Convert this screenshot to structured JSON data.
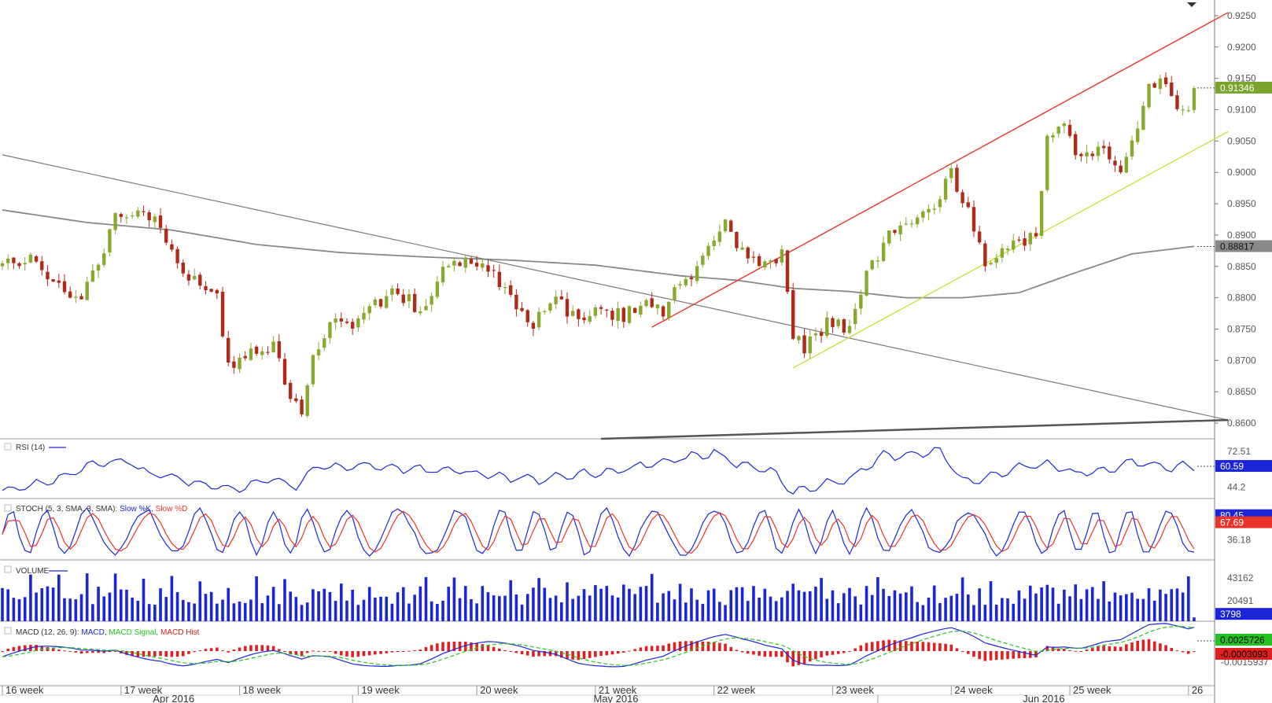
{
  "colors": {
    "bull": "#8aa82e",
    "bear": "#b02a1a",
    "ma": "#888888",
    "channel_upper": "#e8342a",
    "channel_lower": "#c9e13a",
    "trend": "#7a7a7a",
    "support": "#555555",
    "rsi": "#1b26d8",
    "stoch_k": "#1b26d8",
    "stoch_d": "#e8342a",
    "volume": "#1b26d8",
    "macd": "#1b26d8",
    "macd_signal": "#1ec81e",
    "macd_hist": "#e02020",
    "price_badge": "#7aa52c",
    "ma_badge": "#888888"
  },
  "chart_data": [
    {
      "type": "candlestick",
      "symbol_panel": "price",
      "ylim": [
        0.8575,
        0.9275
      ],
      "y_ticks": [
        "0.9250",
        "0.9200",
        "0.9150",
        "0.9100",
        "0.9050",
        "0.9000",
        "0.8950",
        "0.8900",
        "0.8850",
        "0.8800",
        "0.8750",
        "0.8700",
        "0.8650",
        "0.8600"
      ],
      "current_price": "0.91346",
      "ma_value": "0.88817",
      "ma_path": [
        [
          0,
          0.894
        ],
        [
          15,
          0.892
        ],
        [
          30,
          0.8908
        ],
        [
          45,
          0.8885
        ],
        [
          60,
          0.8872
        ],
        [
          75,
          0.8865
        ],
        [
          90,
          0.886
        ],
        [
          105,
          0.8852
        ],
        [
          120,
          0.8835
        ],
        [
          130,
          0.8828
        ],
        [
          140,
          0.8815
        ],
        [
          150,
          0.881
        ],
        [
          160,
          0.88
        ],
        [
          170,
          0.88
        ],
        [
          180,
          0.8808
        ],
        [
          190,
          0.884
        ],
        [
          200,
          0.887
        ],
        [
          211,
          0.8882
        ]
      ],
      "trendline_down": [
        [
          0,
          0.9028
        ],
        [
          217,
          0.8605
        ]
      ],
      "trendline_support": [
        [
          106,
          0.8575
        ],
        [
          217,
          0.8605
        ]
      ],
      "channel_upper": [
        [
          115,
          0.8753
        ],
        [
          217,
          0.9255
        ]
      ],
      "channel_lower": [
        [
          140,
          0.8688
        ],
        [
          217,
          0.9065
        ]
      ],
      "anchors": [
        [
          0,
          0.885
        ],
        [
          6,
          0.886
        ],
        [
          10,
          0.882
        ],
        [
          14,
          0.88
        ],
        [
          18,
          0.887
        ],
        [
          20,
          0.894
        ],
        [
          24,
          0.893
        ],
        [
          28,
          0.892
        ],
        [
          32,
          0.883
        ],
        [
          36,
          0.882
        ],
        [
          38,
          0.88
        ],
        [
          40,
          0.869
        ],
        [
          44,
          0.871
        ],
        [
          48,
          0.872
        ],
        [
          51,
          0.864
        ],
        [
          53,
          0.861
        ],
        [
          55,
          0.87
        ],
        [
          58,
          0.876
        ],
        [
          62,
          0.875
        ],
        [
          66,
          0.879
        ],
        [
          70,
          0.881
        ],
        [
          74,
          0.878
        ],
        [
          78,
          0.884
        ],
        [
          82,
          0.886
        ],
        [
          86,
          0.885
        ],
        [
          90,
          0.88
        ],
        [
          94,
          0.876
        ],
        [
          98,
          0.88
        ],
        [
          102,
          0.876
        ],
        [
          106,
          0.878
        ],
        [
          110,
          0.877
        ],
        [
          114,
          0.88
        ],
        [
          117,
          0.878
        ],
        [
          120,
          0.882
        ],
        [
          124,
          0.886
        ],
        [
          128,
          0.892
        ],
        [
          131,
          0.887
        ],
        [
          135,
          0.885
        ],
        [
          138,
          0.887
        ],
        [
          140,
          0.874
        ],
        [
          142,
          0.872
        ],
        [
          146,
          0.876
        ],
        [
          150,
          0.875
        ],
        [
          153,
          0.884
        ],
        [
          157,
          0.89
        ],
        [
          161,
          0.891
        ],
        [
          165,
          0.895
        ],
        [
          168,
          0.9
        ],
        [
          171,
          0.894
        ],
        [
          174,
          0.886
        ],
        [
          177,
          0.887
        ],
        [
          180,
          0.889
        ],
        [
          183,
          0.89
        ],
        [
          185,
          0.906
        ],
        [
          188,
          0.907
        ],
        [
          191,
          0.902
        ],
        [
          195,
          0.904
        ],
        [
          198,
          0.9
        ],
        [
          200,
          0.905
        ],
        [
          203,
          0.914
        ],
        [
          206,
          0.914
        ],
        [
          208,
          0.911
        ],
        [
          210,
          0.909
        ],
        [
          211,
          0.9135
        ]
      ],
      "x_labels": [
        {
          "t": "16 week",
          "i": 0
        },
        {
          "t": "17 week",
          "i": 21
        },
        {
          "t": "18 week",
          "i": 42
        },
        {
          "t": "19 week",
          "i": 63
        },
        {
          "t": "20 week",
          "i": 84
        },
        {
          "t": "21 week",
          "i": 105
        },
        {
          "t": "22 week",
          "i": 126
        },
        {
          "t": "23 week",
          "i": 147
        },
        {
          "t": "24 week",
          "i": 168
        },
        {
          "t": "25 week",
          "i": 189
        },
        {
          "t": "26",
          "i": 210
        }
      ],
      "month_labels": [
        {
          "t": "Apr 2016",
          "i": 30
        },
        {
          "t": "May 2016",
          "i": 108
        },
        {
          "t": "Jun 2016",
          "i": 184
        }
      ],
      "month_separators": [
        62,
        155
      ]
    },
    {
      "type": "line",
      "title": "RSI (14)",
      "ylim": [
        35,
        80
      ],
      "y_ticks": [
        "72.51",
        "44.2"
      ],
      "current": "60.59",
      "anchors": [
        [
          0,
          42
        ],
        [
          8,
          48
        ],
        [
          16,
          62
        ],
        [
          22,
          66
        ],
        [
          26,
          55
        ],
        [
          32,
          50
        ],
        [
          40,
          42
        ],
        [
          48,
          50
        ],
        [
          52,
          45
        ],
        [
          56,
          60
        ],
        [
          64,
          61
        ],
        [
          72,
          58
        ],
        [
          80,
          57
        ],
        [
          88,
          52
        ],
        [
          95,
          50
        ],
        [
          102,
          54
        ],
        [
          110,
          58
        ],
        [
          118,
          65
        ],
        [
          126,
          72
        ],
        [
          130,
          62
        ],
        [
          136,
          58
        ],
        [
          140,
          40
        ],
        [
          144,
          45
        ],
        [
          150,
          50
        ],
        [
          156,
          70
        ],
        [
          160,
          68
        ],
        [
          166,
          74
        ],
        [
          170,
          48
        ],
        [
          176,
          54
        ],
        [
          180,
          60
        ],
        [
          185,
          62
        ],
        [
          190,
          55
        ],
        [
          195,
          57
        ],
        [
          200,
          64
        ],
        [
          206,
          60
        ],
        [
          211,
          61
        ]
      ]
    },
    {
      "type": "oscillator",
      "title": "STOCH (5, 3, SMA, 3, SMA)",
      "legend": [
        "Slow %K",
        "Slow %D"
      ],
      "ylim": [
        0,
        100
      ],
      "y_ticks": [
        "36.18"
      ],
      "current_k": "80.45",
      "current_d": "67.69"
    },
    {
      "type": "bar",
      "title": "VOLUME",
      "ylim": [
        0,
        55000
      ],
      "y_ticks": [
        "43162",
        "20491"
      ],
      "current": "3798"
    },
    {
      "type": "macd",
      "title": "MACD (12, 26, 9):",
      "legend": [
        "MACD",
        "MACD Signal",
        "MACD Hist"
      ],
      "y_ticks": [
        "-0.0015937"
      ],
      "current_macd": "0.0025726",
      "current_hist": "-0.0003093"
    }
  ]
}
